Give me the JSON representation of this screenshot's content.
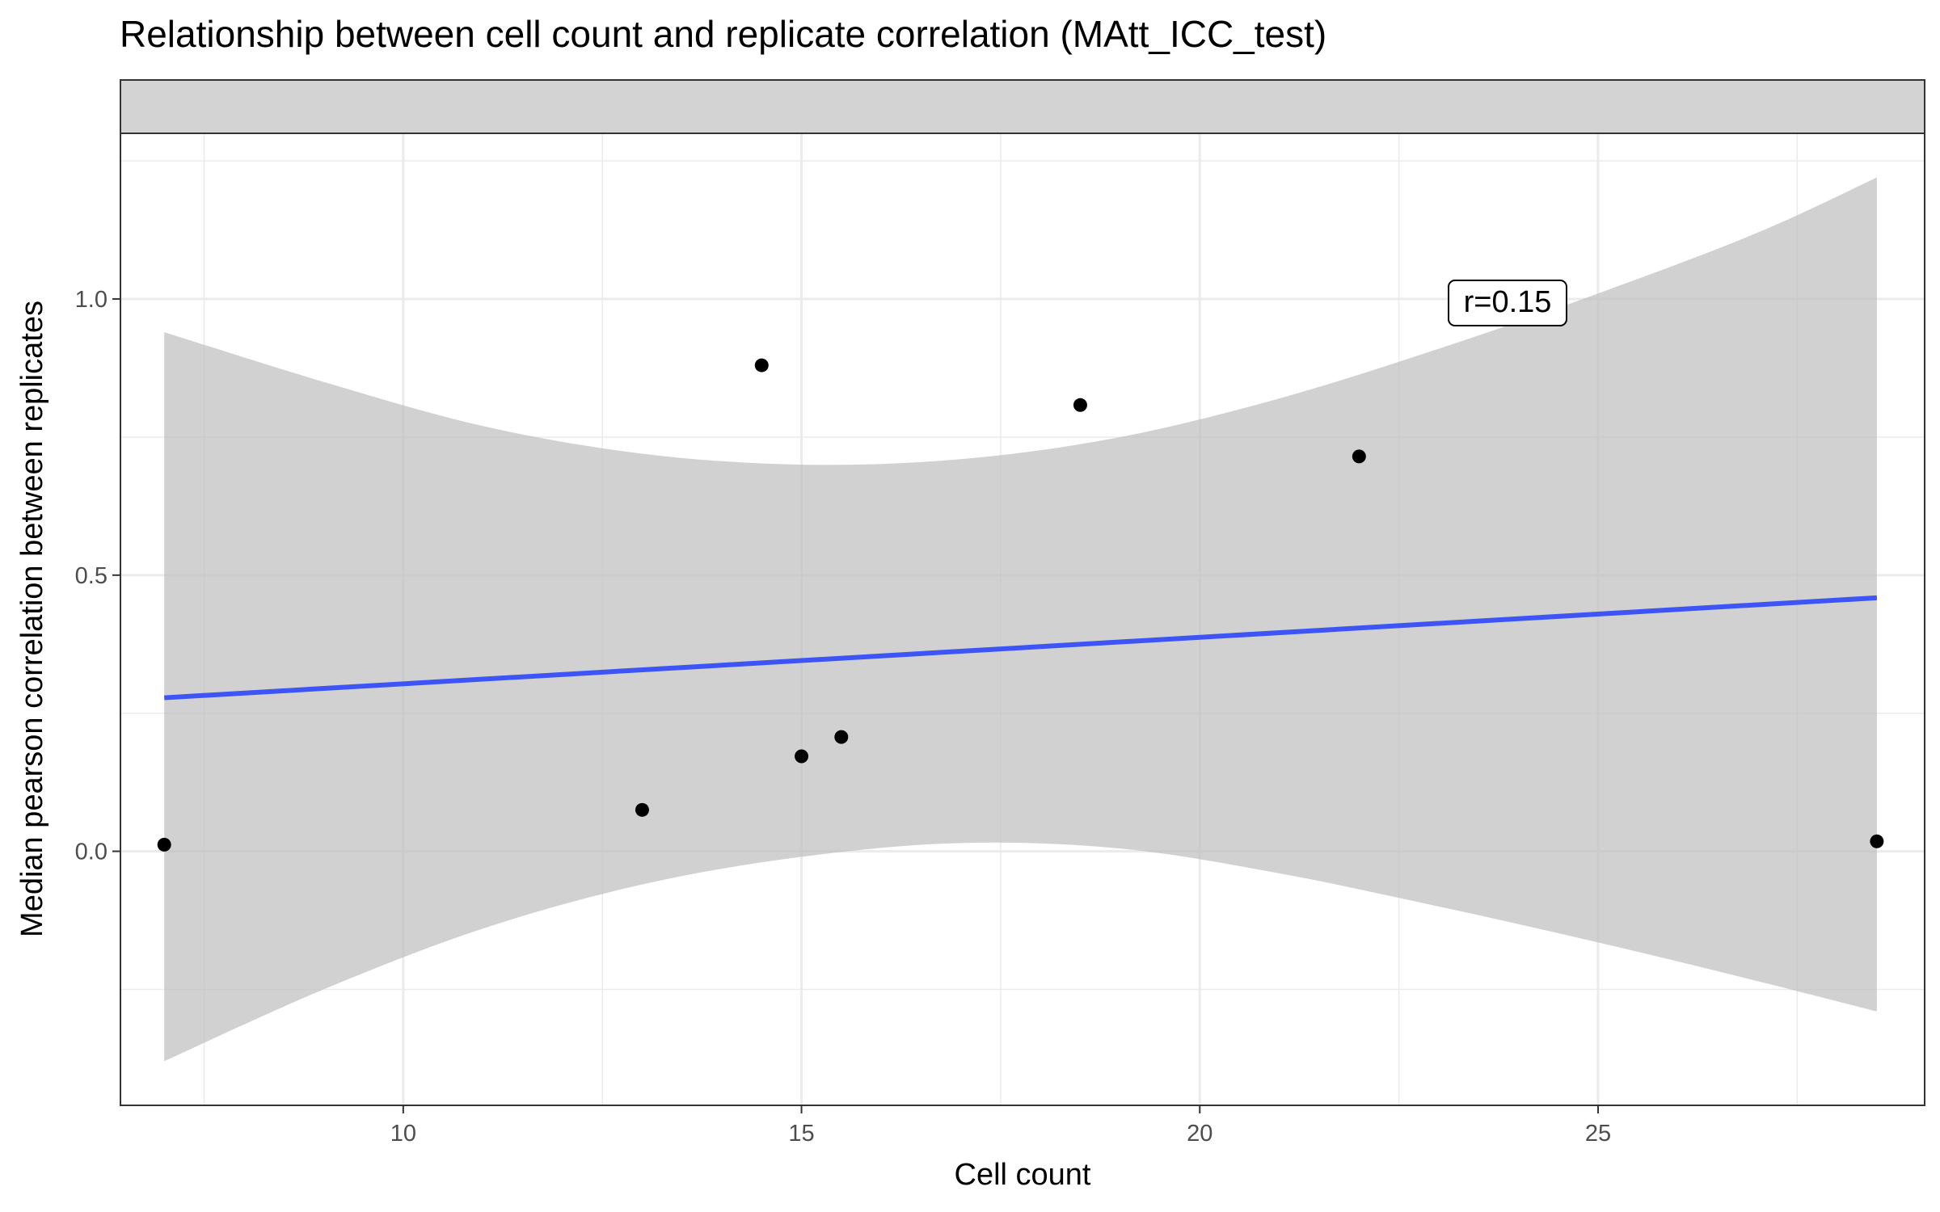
{
  "chart_data": {
    "type": "scatter",
    "title": "Relationship between cell count and replicate correlation (MAtt_ICC_test)",
    "xlabel": "Cell count",
    "ylabel": "Median pearson correlation between replicates",
    "facet_strip_label": "",
    "annotation": "r=0.15",
    "xlim": [
      6.45,
      29.1
    ],
    "ylim": [
      -0.46,
      1.3
    ],
    "x_ticks": [
      10,
      15,
      20,
      25
    ],
    "x_tick_labels": [
      "10",
      "15",
      "20",
      "25"
    ],
    "y_ticks": [
      0.0,
      0.5,
      1.0
    ],
    "y_tick_labels": [
      "0.0",
      "0.5",
      "1.0"
    ],
    "grid": true,
    "points": [
      {
        "x": 7.0,
        "y": 0.012
      },
      {
        "x": 13.0,
        "y": 0.075
      },
      {
        "x": 14.5,
        "y": 0.88
      },
      {
        "x": 15.0,
        "y": 0.172
      },
      {
        "x": 15.5,
        "y": 0.207
      },
      {
        "x": 18.5,
        "y": 0.808
      },
      {
        "x": 22.0,
        "y": 0.715
      },
      {
        "x": 28.5,
        "y": 0.018
      }
    ],
    "fit_line": {
      "x": [
        7.0,
        28.5
      ],
      "y": [
        0.278,
        0.459
      ]
    },
    "confidence_band": {
      "x": [
        7.0,
        9.0,
        11.0,
        13.0,
        15.0,
        17.0,
        19.0,
        21.0,
        23.0,
        25.0,
        27.0,
        28.5
      ],
      "lower": [
        -0.38,
        -0.25,
        -0.14,
        -0.06,
        -0.01,
        0.015,
        0.005,
        -0.04,
        -0.1,
        -0.165,
        -0.235,
        -0.29
      ],
      "upper": [
        0.94,
        0.85,
        0.77,
        0.72,
        0.7,
        0.71,
        0.75,
        0.82,
        0.91,
        1.01,
        1.12,
        1.22
      ]
    },
    "colors": {
      "points": "#000000",
      "fit_line": "#3d55f5",
      "band": "#bebebe",
      "strip": "#d3d3d3",
      "grid": "#ebebeb",
      "panel_border": "#333333"
    }
  }
}
